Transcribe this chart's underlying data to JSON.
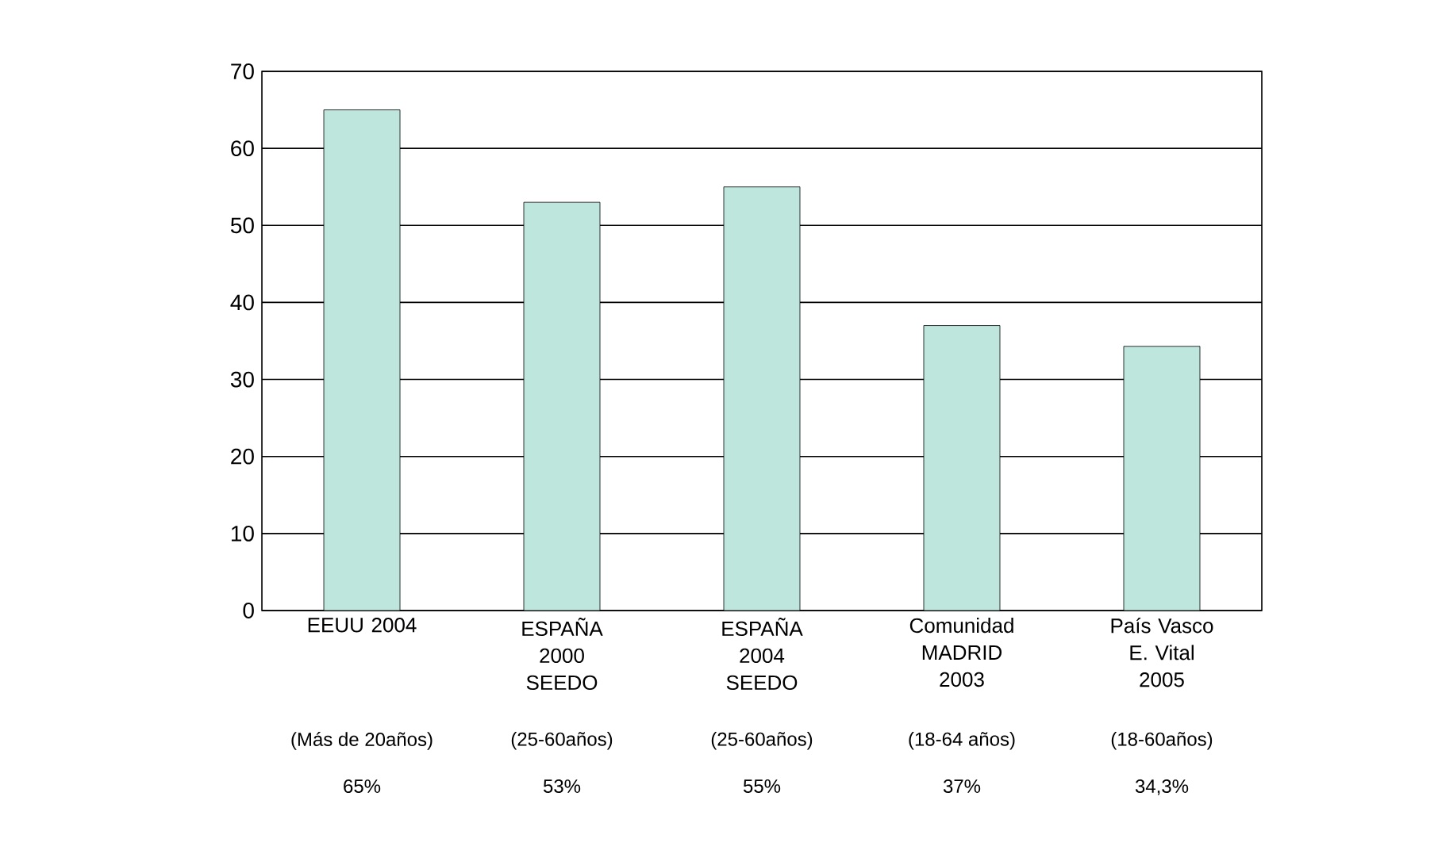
{
  "chart_data": {
    "type": "bar",
    "categories": [
      "EEUU 2004",
      "ESPAÑA 2000 SEEDO",
      "ESPAÑA 2004 SEEDO",
      "Comunidad MADRID 2003",
      "País Vasco E. Vital 2005"
    ],
    "values": [
      65,
      53,
      55,
      37,
      34.3
    ],
    "value_labels": [
      "65%",
      "53%",
      "55%",
      "37%",
      "34,3%"
    ],
    "annotations": [
      "(Más de 20años)",
      "(25-60años)",
      "(25-60años)",
      "(18-64 años)",
      "(18-60años)"
    ],
    "color": "#bfe6dd",
    "ylim": [
      0,
      70
    ],
    "yticks": [
      0,
      10,
      20,
      30,
      40,
      50,
      60,
      70
    ],
    "grid": "y"
  }
}
